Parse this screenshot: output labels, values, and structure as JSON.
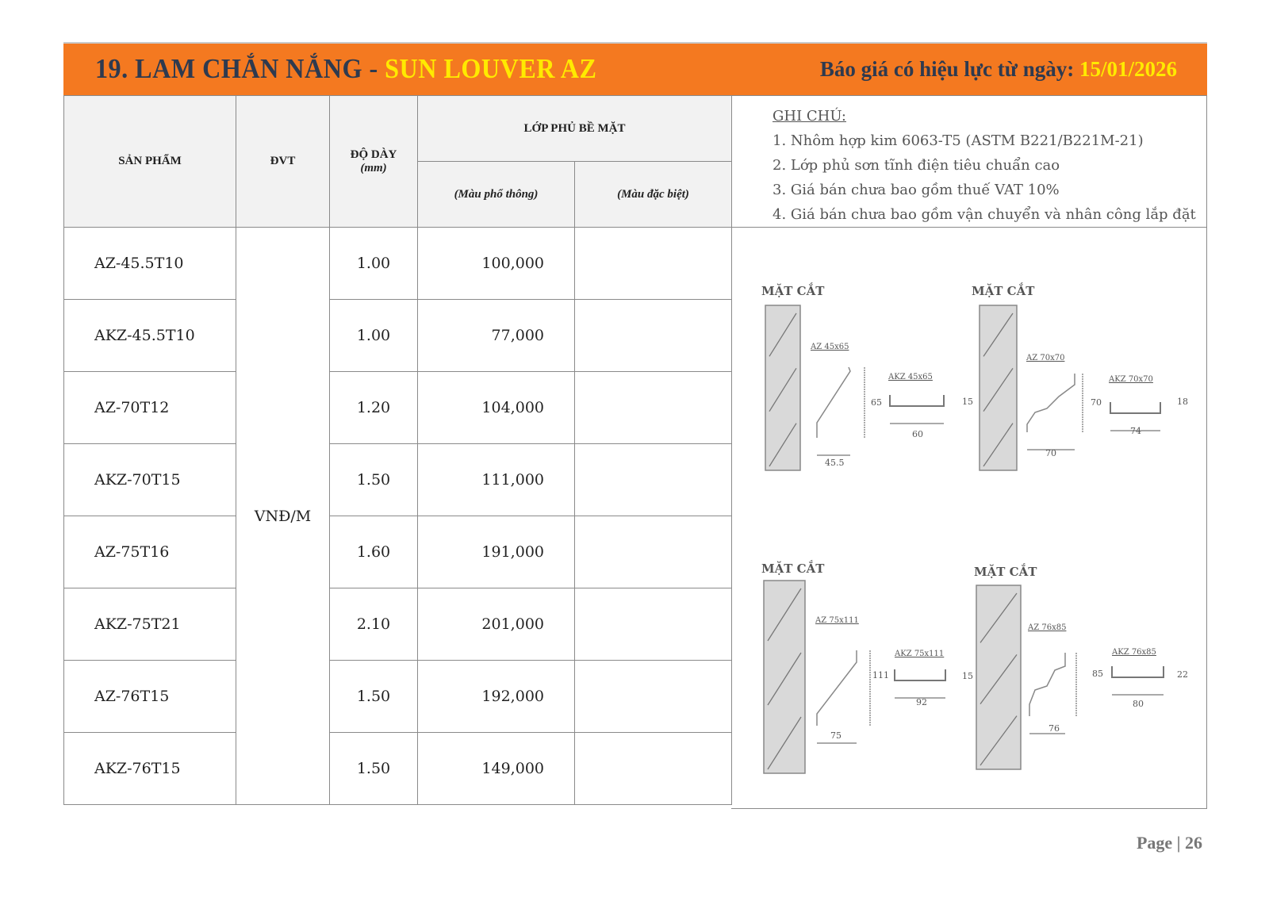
{
  "header": {
    "title_prefix": "19.  LAM CHẮN NẮNG - ",
    "title_highlight": "SUN LOUVER AZ",
    "validity_label": "Báo giá có hiệu lực từ ngày: ",
    "validity_date": "15/01/2026",
    "colors": {
      "banner": "#f47920",
      "highlight": "#ffea00",
      "title": "#2e3a4f"
    }
  },
  "table": {
    "headers": {
      "product": "SẢN PHẨM",
      "unit": "ĐVT",
      "thickness": "ĐỘ DÀY",
      "thickness_unit": "(mm)",
      "coating": "LỚP PHỦ BỀ MẶT",
      "standard_color": "(Màu phổ thông)",
      "special_color": "(Màu đặc biệt)"
    },
    "unit_value": "VNĐ/M",
    "rows": [
      {
        "product": "AZ-45.5T10",
        "thickness": "1.00",
        "standard": "100,000",
        "special": ""
      },
      {
        "product": "AKZ-45.5T10",
        "thickness": "1.00",
        "standard": "77,000",
        "special": ""
      },
      {
        "product": "AZ-70T12",
        "thickness": "1.20",
        "standard": "104,000",
        "special": ""
      },
      {
        "product": "AKZ-70T15",
        "thickness": "1.50",
        "standard": "111,000",
        "special": ""
      },
      {
        "product": "AZ-75T16",
        "thickness": "1.60",
        "standard": "191,000",
        "special": ""
      },
      {
        "product": "AKZ-75T21",
        "thickness": "2.10",
        "standard": "201,000",
        "special": ""
      },
      {
        "product": "AZ-76T15",
        "thickness": "1.50",
        "standard": "192,000",
        "special": ""
      },
      {
        "product": "AKZ-76T15",
        "thickness": "1.50",
        "standard": "149,000",
        "special": ""
      }
    ]
  },
  "notes": {
    "heading": "GHI CHÚ:",
    "items": [
      "1. Nhôm hợp kim 6063-T5 (ASTM B221/B221M-21)",
      "2. Lớp phủ sơn tĩnh điện tiêu chuẩn cao",
      "3. Giá bán chưa bao gồm thuế VAT 10%",
      "4. Giá bán chưa bao gồm vận chuyển và nhân công lắp đặt"
    ]
  },
  "diagrams": [
    {
      "title": "MẶT CẮT",
      "az_label": "AZ 45x65",
      "az_height": "65",
      "az_width": "45.5",
      "akz_label": "AKZ 45x65",
      "akz_height": "15",
      "akz_width": "60"
    },
    {
      "title": "MẶT CẮT",
      "az_label": "AZ 70x70",
      "az_height": "70",
      "az_width": "70",
      "akz_label": "AKZ 70x70",
      "akz_height": "18",
      "akz_width": "74"
    },
    {
      "title": "MẶT CẮT",
      "az_label": "AZ 75x111",
      "az_height": "111",
      "az_width": "75",
      "akz_label": "AKZ 75x111",
      "akz_height": "15",
      "akz_width": "92"
    },
    {
      "title": "MẶT CẮT",
      "az_label": "AZ 76x85",
      "az_height": "85",
      "az_width": "76",
      "akz_label": "AKZ 76x85",
      "akz_height": "22",
      "akz_width": "80"
    }
  ],
  "footer": {
    "page_label": "Page | 26"
  }
}
